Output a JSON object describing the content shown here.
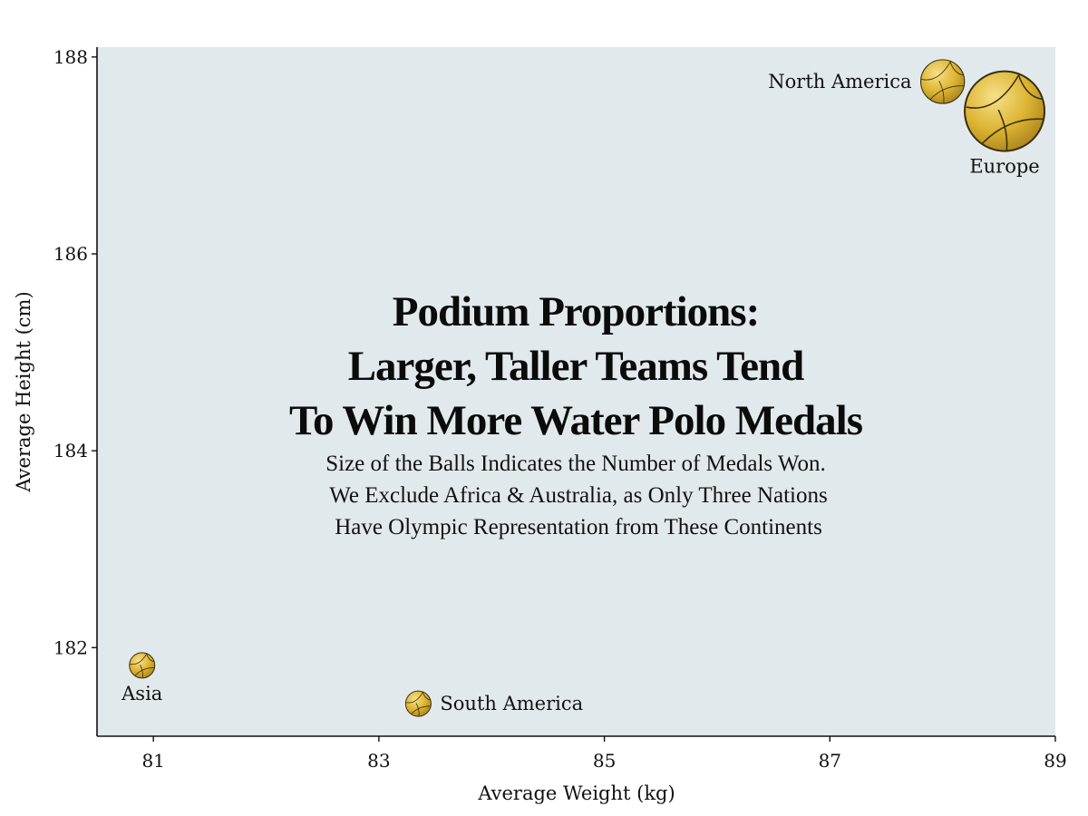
{
  "chart_data": {
    "type": "scatter",
    "title_lines": [
      "Podium Proportions:",
      "Larger, Taller Teams Tend",
      "To Win More Water Polo Medals"
    ],
    "subtitle_lines": [
      "Size of the Balls Indicates the Number of Medals Won.",
      "We Exclude Africa & Australia, as Only Three Nations",
      "Have Olympic Representation from These Continents"
    ],
    "xlabel": "Average Weight (kg)",
    "ylabel": "Average Height (cm)",
    "xlim": [
      80.5,
      89
    ],
    "ylim": [
      181.1,
      188.1
    ],
    "xticks": [
      "81",
      "83",
      "85",
      "87",
      "89"
    ],
    "yticks": [
      "182",
      "184",
      "186",
      "188"
    ],
    "grid": false,
    "points": [
      {
        "label": "North America",
        "x": 88.0,
        "y": 187.75,
        "medals": 6
      },
      {
        "label": "Europe",
        "x": 88.55,
        "y": 187.45,
        "medals": 45
      },
      {
        "label": "Asia",
        "x": 80.9,
        "y": 181.82,
        "medals": 1
      },
      {
        "label": "South America",
        "x": 83.35,
        "y": 181.43,
        "medals": 1
      }
    ],
    "colors": {
      "plot_background": "#e2e9ed",
      "ball_fill": "#ddb533",
      "ball_seam": "#3a3010"
    }
  }
}
